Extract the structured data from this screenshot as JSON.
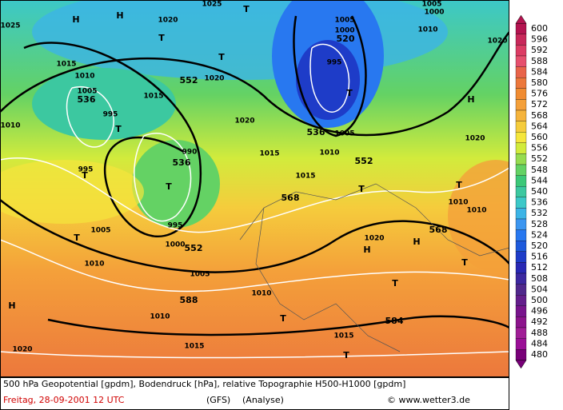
{
  "map": {
    "labels": [
      "H",
      "H",
      "1020",
      "1025",
      "T",
      "1025",
      "T",
      "T",
      "552",
      "1020",
      "1015",
      "1010",
      "1005",
      "536",
      "995",
      "T",
      "1015",
      "1010",
      "1020",
      "995",
      "990",
      "536",
      "T",
      "1015",
      "1015",
      "568",
      "552",
      "1010",
      "536",
      "1005",
      "520",
      "995",
      "T",
      "1005",
      "1000",
      "1005",
      "1000",
      "1010",
      "1020",
      "H",
      "1020",
      "T",
      "T",
      "1010",
      "1010",
      "568",
      "H",
      "1020",
      "H",
      "T",
      "T",
      "T",
      "1005",
      "995",
      "1000",
      "552",
      "1010",
      "1005",
      "588",
      "1010",
      "H",
      "1010",
      "T",
      "584",
      "1015",
      "T",
      "1015",
      "1020",
      "T"
    ]
  },
  "legend": {
    "values": [
      600,
      596,
      592,
      588,
      584,
      580,
      576,
      572,
      568,
      564,
      560,
      556,
      552,
      548,
      544,
      540,
      536,
      532,
      528,
      524,
      520,
      516,
      512,
      508,
      504,
      500,
      496,
      492,
      488,
      484,
      480
    ],
    "colors": [
      "#b41450",
      "#c8285a",
      "#dc3c64",
      "#e6506e",
      "#e8644a",
      "#ec783c",
      "#f08c32",
      "#f4a03a",
      "#f5b43c",
      "#f5cc3c",
      "#f5e63c",
      "#d2eb3c",
      "#96dc50",
      "#64d264",
      "#3cc878",
      "#3cc8a0",
      "#3cc8c8",
      "#3cb4e6",
      "#3c96f0",
      "#2878f0",
      "#1e5adc",
      "#1e3cc8",
      "#2828b4",
      "#3c28a0",
      "#50288c",
      "#641e8c",
      "#78148c",
      "#8c148c",
      "#a01e96",
      "#9a0f96",
      "#780078"
    ]
  },
  "footer": {
    "line1": "500 hPa Geopotential [gpdm], Bodendruck [hPa], relative Topographie H500-H1000 [gpdm]",
    "date": "Freitag, 28-09-2001   12 UTC",
    "model": "(GFS)",
    "run": "(Analyse)",
    "source": "© www.wetter3.de"
  }
}
